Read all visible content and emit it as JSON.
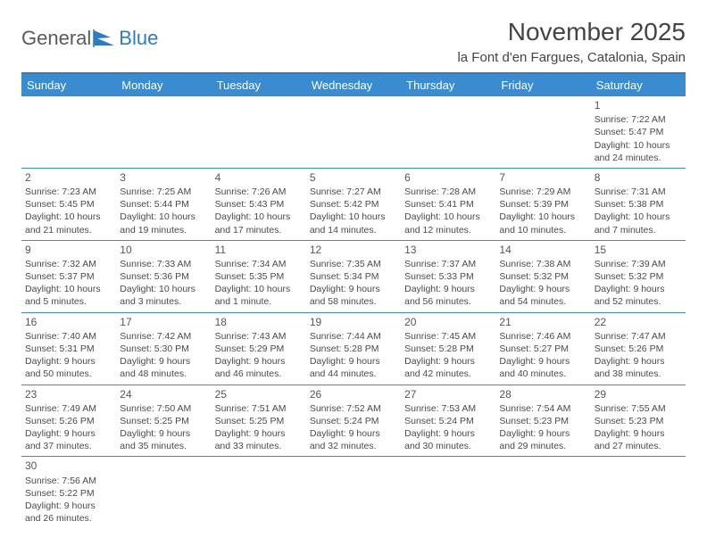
{
  "logo": {
    "part1": "General",
    "part2": "Blue"
  },
  "title": "November 2025",
  "location": "la Font d'en Fargues, Catalonia, Spain",
  "colors": {
    "header_bg": "#3a8bd0",
    "header_text": "#ffffff",
    "divider": "#2d7cc0",
    "text": "#4a4a4a",
    "logo_gray": "#5a5a5a",
    "logo_blue": "#2d7cc0"
  },
  "day_headers": [
    "Sunday",
    "Monday",
    "Tuesday",
    "Wednesday",
    "Thursday",
    "Friday",
    "Saturday"
  ],
  "weeks": [
    [
      null,
      null,
      null,
      null,
      null,
      null,
      {
        "n": "1",
        "sunrise": "Sunrise: 7:22 AM",
        "sunset": "Sunset: 5:47 PM",
        "daylight": "Daylight: 10 hours and 24 minutes."
      }
    ],
    [
      {
        "n": "2",
        "sunrise": "Sunrise: 7:23 AM",
        "sunset": "Sunset: 5:45 PM",
        "daylight": "Daylight: 10 hours and 21 minutes."
      },
      {
        "n": "3",
        "sunrise": "Sunrise: 7:25 AM",
        "sunset": "Sunset: 5:44 PM",
        "daylight": "Daylight: 10 hours and 19 minutes."
      },
      {
        "n": "4",
        "sunrise": "Sunrise: 7:26 AM",
        "sunset": "Sunset: 5:43 PM",
        "daylight": "Daylight: 10 hours and 17 minutes."
      },
      {
        "n": "5",
        "sunrise": "Sunrise: 7:27 AM",
        "sunset": "Sunset: 5:42 PM",
        "daylight": "Daylight: 10 hours and 14 minutes."
      },
      {
        "n": "6",
        "sunrise": "Sunrise: 7:28 AM",
        "sunset": "Sunset: 5:41 PM",
        "daylight": "Daylight: 10 hours and 12 minutes."
      },
      {
        "n": "7",
        "sunrise": "Sunrise: 7:29 AM",
        "sunset": "Sunset: 5:39 PM",
        "daylight": "Daylight: 10 hours and 10 minutes."
      },
      {
        "n": "8",
        "sunrise": "Sunrise: 7:31 AM",
        "sunset": "Sunset: 5:38 PM",
        "daylight": "Daylight: 10 hours and 7 minutes."
      }
    ],
    [
      {
        "n": "9",
        "sunrise": "Sunrise: 7:32 AM",
        "sunset": "Sunset: 5:37 PM",
        "daylight": "Daylight: 10 hours and 5 minutes."
      },
      {
        "n": "10",
        "sunrise": "Sunrise: 7:33 AM",
        "sunset": "Sunset: 5:36 PM",
        "daylight": "Daylight: 10 hours and 3 minutes."
      },
      {
        "n": "11",
        "sunrise": "Sunrise: 7:34 AM",
        "sunset": "Sunset: 5:35 PM",
        "daylight": "Daylight: 10 hours and 1 minute."
      },
      {
        "n": "12",
        "sunrise": "Sunrise: 7:35 AM",
        "sunset": "Sunset: 5:34 PM",
        "daylight": "Daylight: 9 hours and 58 minutes."
      },
      {
        "n": "13",
        "sunrise": "Sunrise: 7:37 AM",
        "sunset": "Sunset: 5:33 PM",
        "daylight": "Daylight: 9 hours and 56 minutes."
      },
      {
        "n": "14",
        "sunrise": "Sunrise: 7:38 AM",
        "sunset": "Sunset: 5:32 PM",
        "daylight": "Daylight: 9 hours and 54 minutes."
      },
      {
        "n": "15",
        "sunrise": "Sunrise: 7:39 AM",
        "sunset": "Sunset: 5:32 PM",
        "daylight": "Daylight: 9 hours and 52 minutes."
      }
    ],
    [
      {
        "n": "16",
        "sunrise": "Sunrise: 7:40 AM",
        "sunset": "Sunset: 5:31 PM",
        "daylight": "Daylight: 9 hours and 50 minutes."
      },
      {
        "n": "17",
        "sunrise": "Sunrise: 7:42 AM",
        "sunset": "Sunset: 5:30 PM",
        "daylight": "Daylight: 9 hours and 48 minutes."
      },
      {
        "n": "18",
        "sunrise": "Sunrise: 7:43 AM",
        "sunset": "Sunset: 5:29 PM",
        "daylight": "Daylight: 9 hours and 46 minutes."
      },
      {
        "n": "19",
        "sunrise": "Sunrise: 7:44 AM",
        "sunset": "Sunset: 5:28 PM",
        "daylight": "Daylight: 9 hours and 44 minutes."
      },
      {
        "n": "20",
        "sunrise": "Sunrise: 7:45 AM",
        "sunset": "Sunset: 5:28 PM",
        "daylight": "Daylight: 9 hours and 42 minutes."
      },
      {
        "n": "21",
        "sunrise": "Sunrise: 7:46 AM",
        "sunset": "Sunset: 5:27 PM",
        "daylight": "Daylight: 9 hours and 40 minutes."
      },
      {
        "n": "22",
        "sunrise": "Sunrise: 7:47 AM",
        "sunset": "Sunset: 5:26 PM",
        "daylight": "Daylight: 9 hours and 38 minutes."
      }
    ],
    [
      {
        "n": "23",
        "sunrise": "Sunrise: 7:49 AM",
        "sunset": "Sunset: 5:26 PM",
        "daylight": "Daylight: 9 hours and 37 minutes."
      },
      {
        "n": "24",
        "sunrise": "Sunrise: 7:50 AM",
        "sunset": "Sunset: 5:25 PM",
        "daylight": "Daylight: 9 hours and 35 minutes."
      },
      {
        "n": "25",
        "sunrise": "Sunrise: 7:51 AM",
        "sunset": "Sunset: 5:25 PM",
        "daylight": "Daylight: 9 hours and 33 minutes."
      },
      {
        "n": "26",
        "sunrise": "Sunrise: 7:52 AM",
        "sunset": "Sunset: 5:24 PM",
        "daylight": "Daylight: 9 hours and 32 minutes."
      },
      {
        "n": "27",
        "sunrise": "Sunrise: 7:53 AM",
        "sunset": "Sunset: 5:24 PM",
        "daylight": "Daylight: 9 hours and 30 minutes."
      },
      {
        "n": "28",
        "sunrise": "Sunrise: 7:54 AM",
        "sunset": "Sunset: 5:23 PM",
        "daylight": "Daylight: 9 hours and 29 minutes."
      },
      {
        "n": "29",
        "sunrise": "Sunrise: 7:55 AM",
        "sunset": "Sunset: 5:23 PM",
        "daylight": "Daylight: 9 hours and 27 minutes."
      }
    ],
    [
      {
        "n": "30",
        "sunrise": "Sunrise: 7:56 AM",
        "sunset": "Sunset: 5:22 PM",
        "daylight": "Daylight: 9 hours and 26 minutes."
      },
      null,
      null,
      null,
      null,
      null,
      null
    ]
  ]
}
